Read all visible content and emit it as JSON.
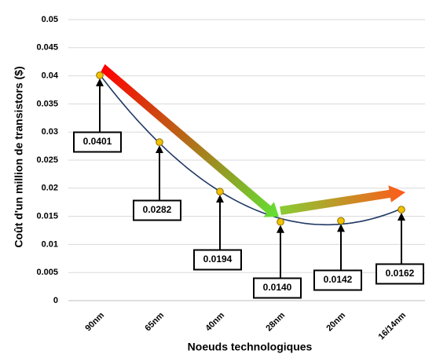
{
  "chart_data": {
    "type": "scatter",
    "title": "",
    "xlabel": "Noeuds technologiques",
    "ylabel": "Coût d'un million de transistors ($)",
    "categories": [
      "90nm",
      "65nm",
      "40nm",
      "28nm",
      "20nm",
      "16/14nm"
    ],
    "values": [
      0.0401,
      0.0282,
      0.0194,
      0.014,
      0.0142,
      0.0162
    ],
    "data_labels": [
      "0.0401",
      "0.0282",
      "0.0194",
      "0.0140",
      "0.0142",
      "0.0162"
    ],
    "ylim": [
      0,
      0.05
    ],
    "yticks": [
      0,
      0.005,
      0.01,
      0.015,
      0.02,
      0.025,
      0.03,
      0.035,
      0.04,
      0.045,
      0.05
    ],
    "ytick_labels": [
      "0",
      "0.005",
      "0.01",
      "0.015",
      "0.02",
      "0.025",
      "0.03",
      "0.035",
      "0.04",
      "0.045",
      "0.05"
    ],
    "grid": true,
    "trendline": "polynomial",
    "colors": {
      "marker_fill": "#f2c200",
      "marker_edge": "#8a6d00",
      "trend_line": "#1f3864",
      "grid": "#d9d9d9",
      "arrow_down_start": "#ff0000",
      "arrow_down_end": "#66dd33",
      "arrow_up_start": "#88cc33",
      "arrow_up_end": "#ff5a1a"
    }
  }
}
